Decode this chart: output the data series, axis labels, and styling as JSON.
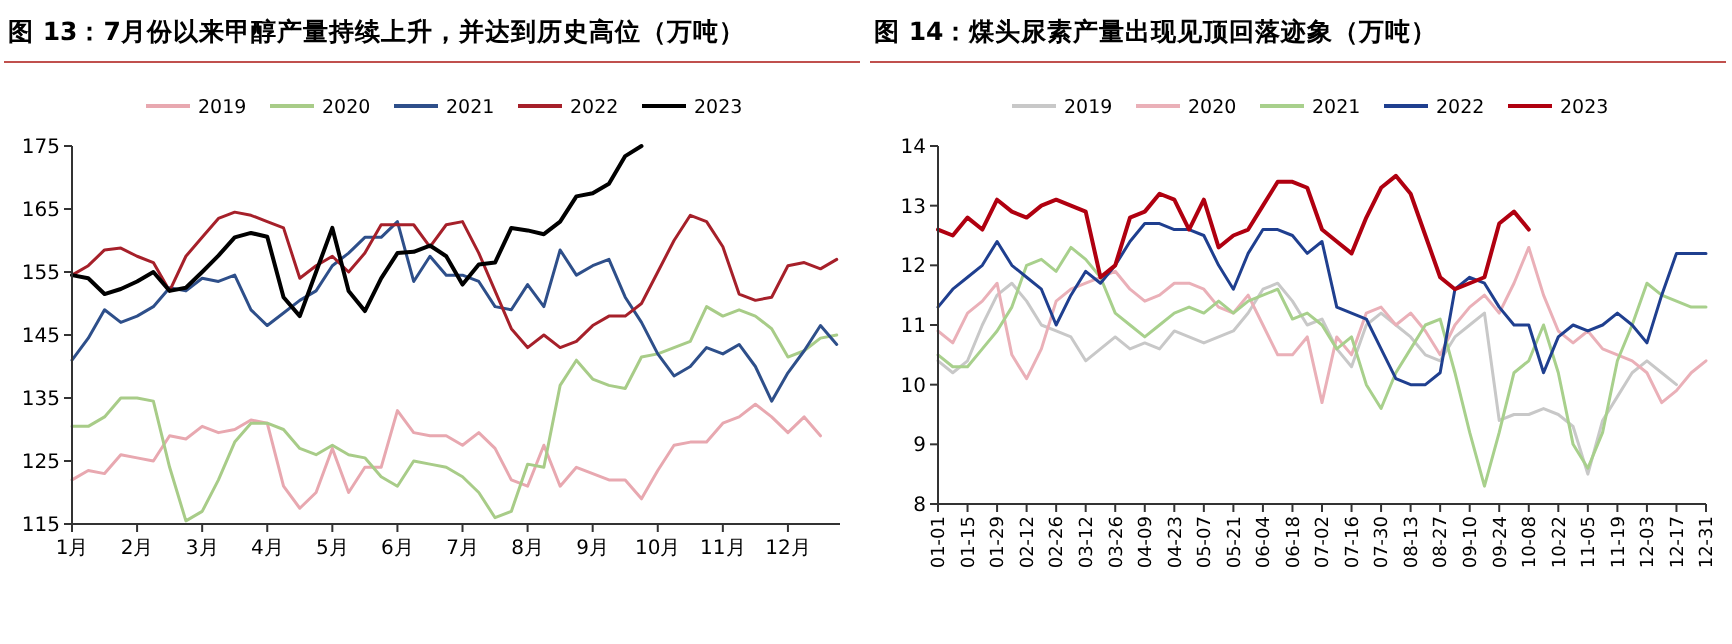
{
  "chart_data": [
    {
      "type": "line",
      "title": "图 13：7月份以来甲醇产量持续上升，并达到历史高位（万吨）",
      "legend": "top",
      "x": [
        1,
        1.25,
        1.5,
        1.75,
        2,
        2.25,
        2.5,
        2.75,
        3,
        3.25,
        3.5,
        3.75,
        4,
        4.25,
        4.5,
        4.75,
        5,
        5.25,
        5.5,
        5.75,
        6,
        6.25,
        6.5,
        6.75,
        7,
        7.25,
        7.5,
        7.75,
        8,
        8.25,
        8.5,
        8.75,
        9,
        9.25,
        9.5,
        9.75,
        10,
        10.25,
        10.5,
        10.75,
        11,
        11.25,
        11.5,
        11.75,
        12,
        12.25,
        12.5,
        12.75
      ],
      "xlim": [
        1,
        12.8
      ],
      "xticks": [
        {
          "value": 1,
          "label": "1月"
        },
        {
          "value": 2,
          "label": "2月"
        },
        {
          "value": 3,
          "label": "3月"
        },
        {
          "value": 4,
          "label": "4月"
        },
        {
          "value": 5,
          "label": "5月"
        },
        {
          "value": 6,
          "label": "6月"
        },
        {
          "value": 7,
          "label": "7月"
        },
        {
          "value": 8,
          "label": "8月"
        },
        {
          "value": 9,
          "label": "9月"
        },
        {
          "value": 10,
          "label": "10月"
        },
        {
          "value": 11,
          "label": "11月"
        },
        {
          "value": 12,
          "label": "12月"
        }
      ],
      "ylim": [
        115,
        175
      ],
      "yticks": [
        115,
        125,
        135,
        145,
        155,
        165,
        175
      ],
      "series": [
        {
          "name": "2019",
          "color": "#e8a8b0",
          "values": [
            122,
            123.5,
            123,
            126,
            125.5,
            125,
            129,
            128.5,
            130.5,
            129.5,
            130,
            131.5,
            131,
            121,
            117.5,
            120,
            127,
            120,
            124,
            124,
            133,
            129.5,
            129,
            129,
            127.5,
            129.5,
            127,
            122,
            121,
            127.5,
            121,
            124,
            123,
            122,
            122,
            119,
            123.5,
            127.5,
            128,
            128,
            131,
            132,
            134,
            132,
            129.5,
            132,
            129,
            null
          ]
        },
        {
          "name": "2020",
          "color": "#a8cc88",
          "values": [
            130.5,
            130.5,
            132,
            135,
            135,
            134.5,
            124,
            115.5,
            117,
            122,
            128,
            131,
            131,
            130,
            127,
            126,
            127.5,
            126,
            125.5,
            122.5,
            121,
            125,
            124.5,
            124,
            122.5,
            120,
            116,
            117,
            124.5,
            124,
            137,
            141,
            138,
            137,
            136.5,
            141.5,
            142,
            143,
            144,
            149.5,
            148,
            149,
            148,
            146,
            141.5,
            142.5,
            144.5,
            145
          ]
        },
        {
          "name": "2021",
          "color": "#2e4f8a",
          "values": [
            141,
            144.5,
            149,
            147,
            148,
            149.5,
            152.5,
            152,
            154,
            153.5,
            154.5,
            149,
            146.5,
            148.5,
            150.5,
            152,
            156,
            158,
            160.5,
            160.5,
            163,
            153.5,
            157.5,
            154.5,
            154.5,
            153.5,
            149.5,
            149,
            153,
            149.5,
            158.5,
            154.5,
            156,
            157,
            151,
            147,
            142,
            138.5,
            140,
            143,
            142,
            143.5,
            140,
            134.5,
            139,
            142.5,
            146.5,
            143.5
          ]
        },
        {
          "name": "2022",
          "color": "#a6202a",
          "values": [
            154.5,
            156,
            158.5,
            158.8,
            157.5,
            156.5,
            152,
            157.5,
            160.5,
            163.5,
            164.5,
            164,
            163,
            162,
            154,
            156,
            157.5,
            155,
            158,
            162.5,
            162.5,
            162.5,
            159,
            162.5,
            163,
            158,
            152,
            146,
            143,
            145,
            143,
            144,
            146.5,
            148,
            148,
            150,
            155,
            160,
            164,
            163,
            159,
            151.5,
            150.5,
            151,
            156,
            156.5,
            155.5,
            157
          ]
        },
        {
          "name": "2023",
          "color": "#000000",
          "values": [
            154.5,
            154,
            151.5,
            152.3,
            153.5,
            155,
            152,
            152.5,
            155,
            157.6,
            160.5,
            161.2,
            160.6,
            151,
            148,
            155,
            162,
            152,
            148.8,
            154,
            158,
            158.2,
            159.2,
            157.5,
            153,
            156.2,
            156.5,
            162,
            161.6,
            161,
            163,
            167,
            167.5,
            169,
            173.4,
            175,
            null,
            null,
            null,
            null,
            null,
            null,
            null,
            null,
            null,
            null,
            null,
            null
          ]
        }
      ]
    },
    {
      "type": "line",
      "title": "图 14：煤头尿素产量出现见顶回落迹象（万吨）",
      "legend": "top",
      "x": [
        "--01-01",
        "--01-08",
        "--01-15",
        "--01-22",
        "--01-29",
        "--02-05",
        "--02-12",
        "--02-19",
        "--02-26",
        "--03-05",
        "--03-12",
        "--03-19",
        "--03-26",
        "--04-02",
        "--04-09",
        "--04-16",
        "--04-23",
        "--04-30",
        "--05-07",
        "--05-14",
        "--05-21",
        "--05-28",
        "--06-04",
        "--06-11",
        "--06-18",
        "--06-25",
        "--07-02",
        "--07-09",
        "--07-16",
        "--07-23",
        "--07-30",
        "--08-06",
        "--08-13",
        "--08-20",
        "--08-27",
        "--09-03",
        "--09-10",
        "--09-17",
        "--09-24",
        "--10-01",
        "--10-08",
        "--10-15",
        "--10-22",
        "--10-29",
        "--11-05",
        "--11-12",
        "--11-19",
        "--11-26",
        "--12-03",
        "--12-10",
        "--12-17",
        "--12-24",
        "--12-31"
      ],
      "xlim": [
        "--01-01",
        "--12-31"
      ],
      "xticks": [
        {
          "value": "--01-01",
          "label": "01-01"
        },
        {
          "value": "--01-15",
          "label": "01-15"
        },
        {
          "value": "--01-29",
          "label": "01-29"
        },
        {
          "value": "--02-12",
          "label": "02-12"
        },
        {
          "value": "--02-26",
          "label": "02-26"
        },
        {
          "value": "--03-12",
          "label": "03-12"
        },
        {
          "value": "--03-26",
          "label": "03-26"
        },
        {
          "value": "--04-09",
          "label": "04-09"
        },
        {
          "value": "--04-23",
          "label": "04-23"
        },
        {
          "value": "--05-07",
          "label": "05-07"
        },
        {
          "value": "--05-21",
          "label": "05-21"
        },
        {
          "value": "--06-04",
          "label": "06-04"
        },
        {
          "value": "--06-18",
          "label": "06-18"
        },
        {
          "value": "--07-02",
          "label": "07-02"
        },
        {
          "value": "--07-16",
          "label": "07-16"
        },
        {
          "value": "--07-30",
          "label": "07-30"
        },
        {
          "value": "--08-13",
          "label": "08-13"
        },
        {
          "value": "--08-27",
          "label": "08-27"
        },
        {
          "value": "--09-10",
          "label": "09-10"
        },
        {
          "value": "--09-24",
          "label": "09-24"
        },
        {
          "value": "--10-08",
          "label": "10-08"
        },
        {
          "value": "--10-22",
          "label": "10-22"
        },
        {
          "value": "--11-05",
          "label": "11-05"
        },
        {
          "value": "--11-19",
          "label": "11-19"
        },
        {
          "value": "--12-03",
          "label": "12-03"
        },
        {
          "value": "--12-17",
          "label": "12-17"
        },
        {
          "value": "--12-31",
          "label": "12-31"
        }
      ],
      "ylim": [
        8,
        14
      ],
      "yticks": [
        8,
        9,
        10,
        11,
        12,
        13,
        14
      ],
      "series": [
        {
          "name": "2019",
          "color": "#c8c8c8",
          "values": [
            10.4,
            10.2,
            10.4,
            11,
            11.5,
            11.7,
            11.4,
            11,
            10.9,
            10.8,
            10.4,
            10.6,
            10.8,
            10.6,
            10.7,
            10.6,
            10.9,
            10.8,
            10.7,
            10.8,
            10.9,
            11.2,
            11.6,
            11.7,
            11.4,
            11,
            11.1,
            10.6,
            10.3,
            11,
            11.2,
            11,
            10.8,
            10.5,
            10.4,
            10.8,
            11,
            11.2,
            9.4,
            9.5,
            9.5,
            9.6,
            9.5,
            9.3,
            8.5,
            9.4,
            9.8,
            10.2,
            10.4,
            10.2,
            10,
            null,
            null
          ]
        },
        {
          "name": "2020",
          "color": "#eab0b8",
          "values": [
            10.9,
            10.7,
            11.2,
            11.4,
            11.7,
            10.5,
            10.1,
            10.6,
            11.4,
            11.6,
            11.7,
            11.8,
            11.9,
            11.6,
            11.4,
            11.5,
            11.7,
            11.7,
            11.6,
            11.3,
            11.2,
            11.5,
            11,
            10.5,
            10.5,
            10.8,
            9.7,
            10.8,
            10.5,
            11.2,
            11.3,
            11,
            11.2,
            10.9,
            10.5,
            11,
            11.3,
            11.5,
            11.2,
            11.7,
            12.3,
            11.5,
            10.9,
            10.7,
            10.9,
            10.6,
            10.5,
            10.4,
            10.2,
            9.7,
            9.9,
            10.2,
            10.4
          ]
        },
        {
          "name": "2021",
          "color": "#a8d08c",
          "values": [
            10.5,
            10.3,
            10.3,
            10.6,
            10.9,
            11.3,
            12,
            12.1,
            11.9,
            12.3,
            12.1,
            11.8,
            11.2,
            11,
            10.8,
            11,
            11.2,
            11.3,
            11.2,
            11.4,
            11.2,
            11.4,
            11.5,
            11.6,
            11.1,
            11.2,
            11,
            10.6,
            10.8,
            10,
            9.6,
            10.2,
            10.6,
            11,
            11.1,
            10.2,
            9.2,
            8.3,
            9.2,
            10.2,
            10.4,
            11,
            10.2,
            9,
            8.6,
            9.2,
            10.4,
            11,
            11.7,
            11.5,
            11.4,
            11.3,
            11.3
          ]
        },
        {
          "name": "2022",
          "color": "#1f3f8f",
          "values": [
            11.3,
            11.6,
            11.8,
            12,
            12.4,
            12,
            11.8,
            11.6,
            11,
            11.5,
            11.9,
            11.7,
            12,
            12.4,
            12.7,
            12.7,
            12.6,
            12.6,
            12.5,
            12,
            11.6,
            12.2,
            12.6,
            12.6,
            12.5,
            12.2,
            12.4,
            11.3,
            11.2,
            11.1,
            10.6,
            10.1,
            10,
            10,
            10.2,
            11.6,
            11.8,
            11.7,
            11.3,
            11,
            11,
            10.2,
            10.8,
            11,
            10.9,
            11,
            11.2,
            11,
            10.7,
            11.5,
            12.2,
            12.2,
            12.2
          ]
        },
        {
          "name": "2023",
          "color": "#b00010",
          "values": [
            12.6,
            12.5,
            12.8,
            12.6,
            13.1,
            12.9,
            12.8,
            13,
            13.1,
            13,
            12.9,
            11.8,
            12,
            12.8,
            12.9,
            13.2,
            13.1,
            12.6,
            13.1,
            12.3,
            12.5,
            12.6,
            13,
            13.4,
            13.4,
            13.3,
            12.6,
            12.4,
            12.2,
            12.8,
            13.3,
            13.5,
            13.2,
            12.5,
            11.8,
            11.6,
            11.7,
            11.8,
            12.7,
            12.9,
            12.6,
            null,
            null,
            null,
            null,
            null,
            null,
            null,
            null,
            null,
            null,
            null,
            null
          ]
        }
      ]
    }
  ]
}
